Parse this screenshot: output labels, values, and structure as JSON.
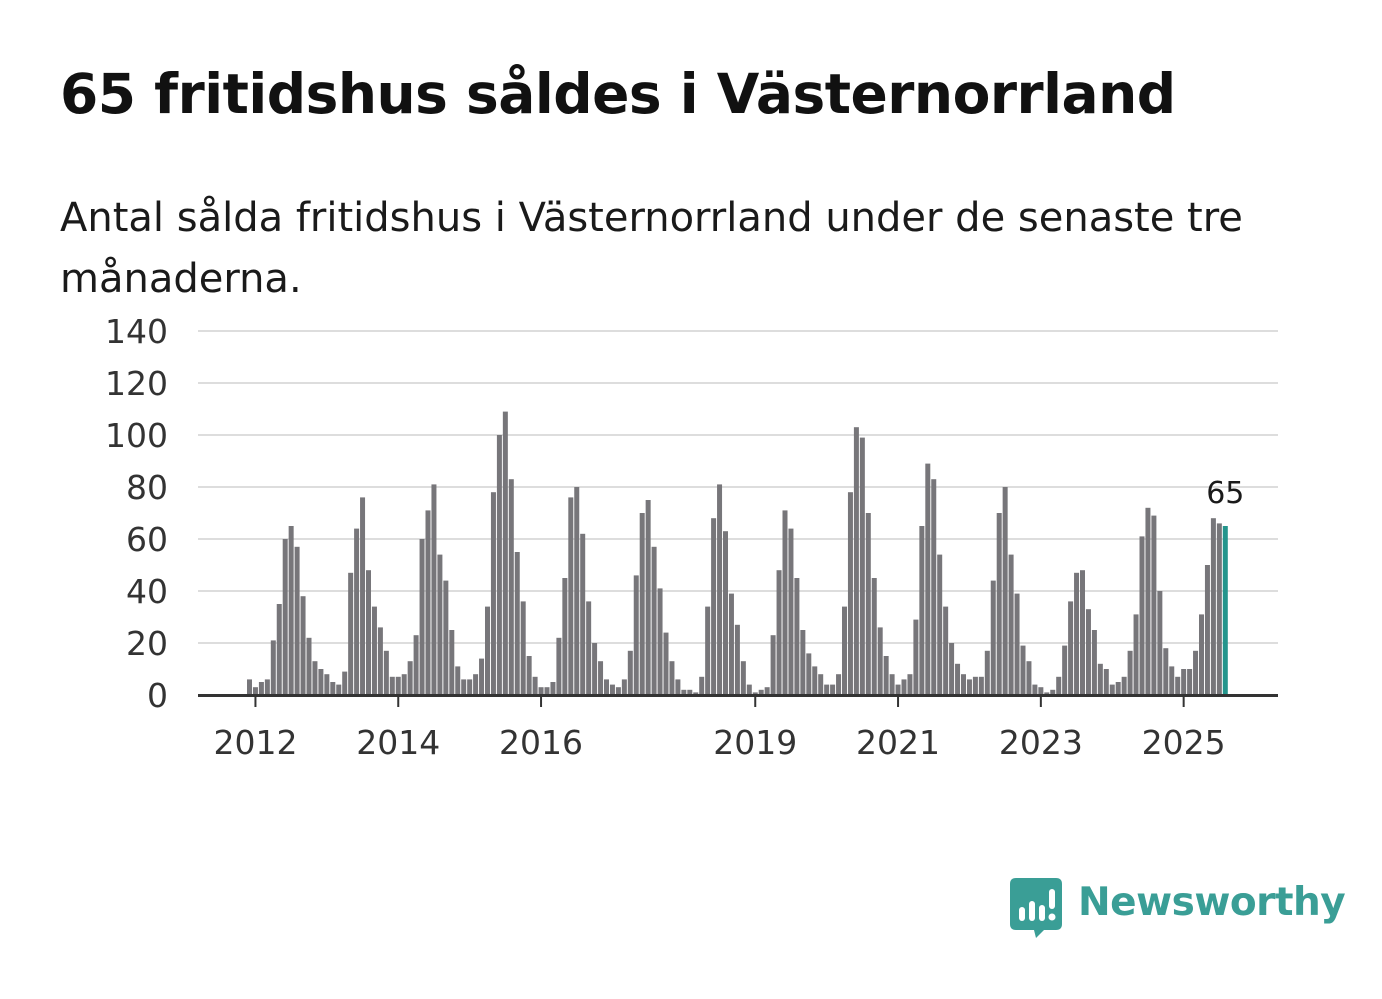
{
  "header": {
    "title": "65 fritidshus såldes i Västernorrland",
    "subtitle": "Antal sålda fritidshus i Västernorrland under de senaste tre månaderna."
  },
  "brand": {
    "name": "Newsworthy",
    "icon": "newsworthy-chart-bubble-icon",
    "color": "#3a9e96"
  },
  "chart_data": {
    "type": "bar",
    "title": "65 fritidshus såldes i Västernorrland",
    "subtitle": "Antal sålda fritidshus i Västernorrland under de senaste tre månaderna.",
    "ylim": [
      0,
      140
    ],
    "yticks": [
      0,
      20,
      40,
      60,
      80,
      100,
      120,
      140
    ],
    "x_tick_labels": [
      "2012",
      "2014",
      "2016",
      "2019",
      "2021",
      "2023",
      "2025"
    ],
    "grid": true,
    "bar_color": "#77767a",
    "highlight_color": "#24958c",
    "highlight_label": "65",
    "start": "2011-12",
    "values": [
      6,
      3,
      5,
      6,
      21,
      35,
      60,
      65,
      57,
      38,
      22,
      13,
      10,
      8,
      5,
      4,
      9,
      47,
      64,
      76,
      48,
      34,
      26,
      17,
      7,
      7,
      8,
      13,
      23,
      60,
      71,
      81,
      54,
      44,
      25,
      11,
      6,
      6,
      8,
      14,
      34,
      78,
      100,
      109,
      83,
      55,
      36,
      15,
      7,
      3,
      3,
      5,
      22,
      45,
      76,
      80,
      62,
      36,
      20,
      13,
      6,
      4,
      3,
      6,
      17,
      46,
      70,
      75,
      57,
      41,
      24,
      13,
      6,
      2,
      2,
      1,
      7,
      34,
      68,
      81,
      63,
      39,
      27,
      13,
      4,
      1,
      2,
      3,
      23,
      48,
      71,
      64,
      45,
      25,
      16,
      11,
      8,
      4,
      4,
      8,
      34,
      78,
      103,
      99,
      70,
      45,
      26,
      15,
      8,
      4,
      6,
      8,
      29,
      65,
      89,
      83,
      54,
      34,
      20,
      12,
      8,
      6,
      7,
      7,
      17,
      44,
      70,
      80,
      54,
      39,
      19,
      13,
      4,
      3,
      1,
      2,
      7,
      19,
      36,
      47,
      48,
      33,
      25,
      12,
      10,
      4,
      5,
      7,
      17,
      31,
      61,
      72,
      69,
      40,
      18,
      11,
      7,
      10,
      10,
      17,
      31,
      50,
      68,
      66,
      65
    ]
  }
}
